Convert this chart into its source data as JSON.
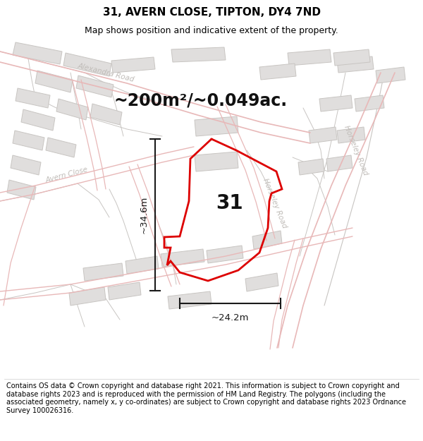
{
  "title": "31, AVERN CLOSE, TIPTON, DY4 7ND",
  "subtitle": "Map shows position and indicative extent of the property.",
  "area_text": "~200m²/~0.049ac.",
  "width_label": "~24.2m",
  "height_label": "~34.6m",
  "number_label": "31",
  "footer_text": "Contains OS data © Crown copyright and database right 2021. This information is subject to Crown copyright and database rights 2023 and is reproduced with the permission of HM Land Registry. The polygons (including the associated geometry, namely x, y co-ordinates) are subject to Crown copyright and database rights 2023 Ordnance Survey 100026316.",
  "bg_color": "#ffffff",
  "map_bg": "#f5f3f0",
  "building_color": "#e0dedd",
  "building_edge": "#c8c5c2",
  "road_line_color": "#e8b8b8",
  "road_line_color2": "#d49090",
  "gray_line_color": "#c8c5c2",
  "plot_color": "#dd0000",
  "dim_color": "#1a1a1a",
  "road_label_color": "#c0bcb8",
  "title_fontsize": 11,
  "subtitle_fontsize": 9,
  "area_fontsize": 17,
  "number_fontsize": 20,
  "footer_fontsize": 7.0
}
